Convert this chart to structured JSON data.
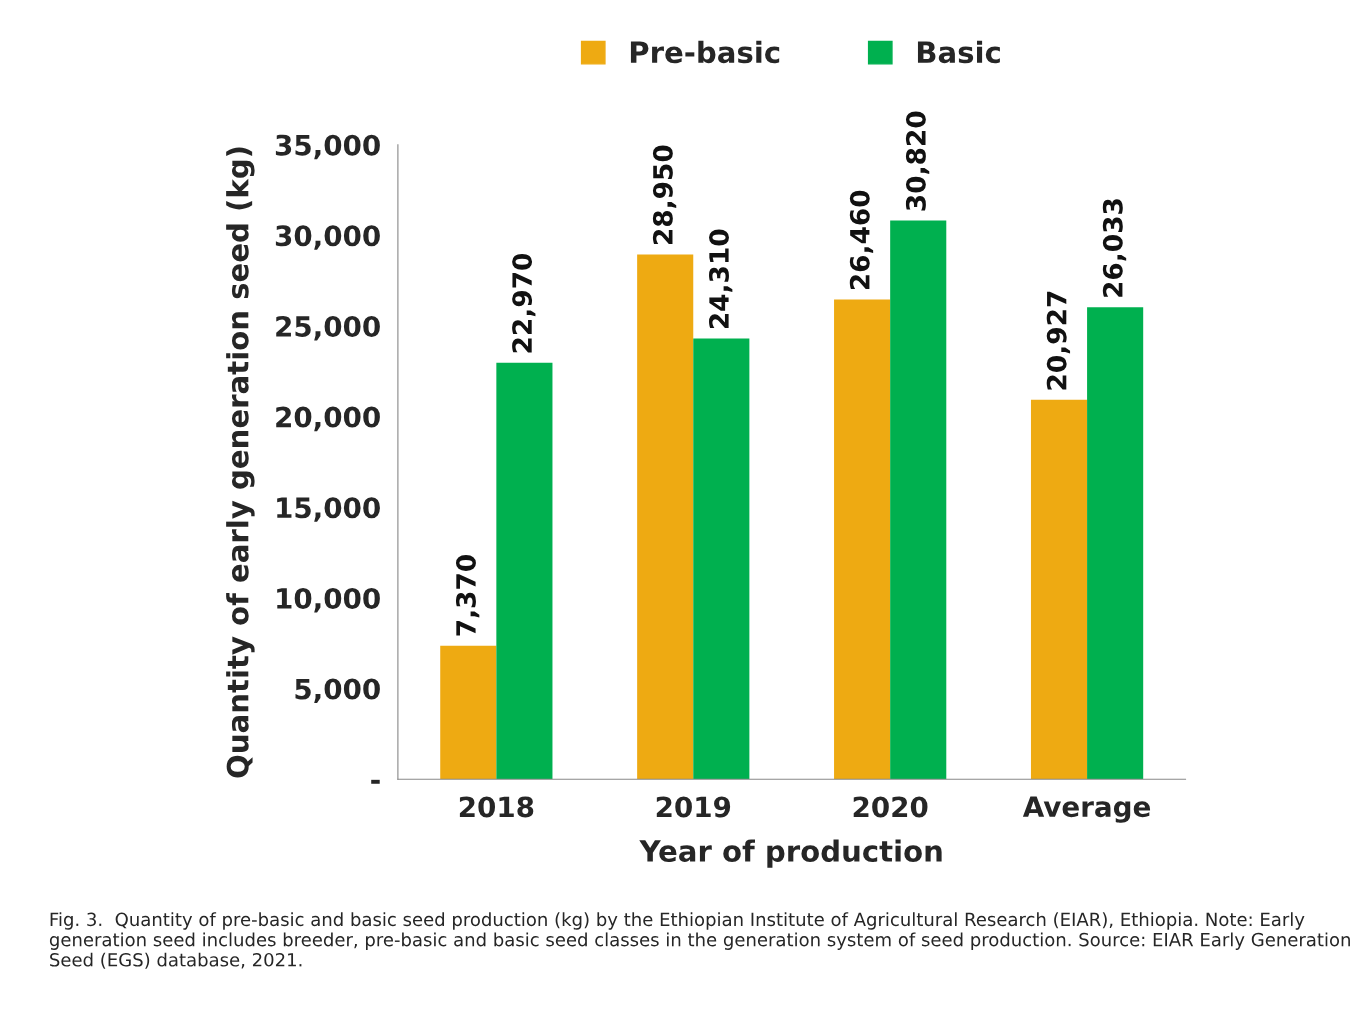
{
  "chart_data": {
    "type": "bar",
    "xlabel": "Year of production",
    "ylabel": "Quantity of early generation seed (kg)",
    "categories": [
      "2018",
      "2019",
      "2020",
      "Average"
    ],
    "series": [
      {
        "name": "Pre-basic",
        "color": "#eeaa12",
        "values": [
          7370,
          28950,
          26460,
          20927
        ],
        "value_labels": [
          "7,370",
          "28,950",
          "26,460",
          "20,927"
        ]
      },
      {
        "name": "Basic",
        "color": "#00b04f",
        "values": [
          22970,
          24310,
          30820,
          26033
        ],
        "value_labels": [
          "22,970",
          "24,310",
          "30,820",
          "26,033"
        ]
      }
    ],
    "ylim": [
      0,
      35000
    ],
    "yticks": [
      {
        "value": 0,
        "label": "-"
      },
      {
        "value": 5000,
        "label": "5,000"
      },
      {
        "value": 10000,
        "label": "10,000"
      },
      {
        "value": 15000,
        "label": "15,000"
      },
      {
        "value": 20000,
        "label": "20,000"
      },
      {
        "value": 25000,
        "label": "25,000"
      },
      {
        "value": 30000,
        "label": "30,000"
      },
      {
        "value": 35000,
        "label": "35,000"
      }
    ],
    "grid": false,
    "legend": "top",
    "annotations": [
      "Fig. 3.  Quantity of pre-basic and basic seed production (kg) by the Ethiopian Institute of Agricultural Research (EIAR), Ethiopia. Note: Early generation seed includes breeder, pre-basic and basic seed classes in the generation system of seed production. Source: EIAR Early Generation Seed (EGS) database, 2021."
    ]
  }
}
